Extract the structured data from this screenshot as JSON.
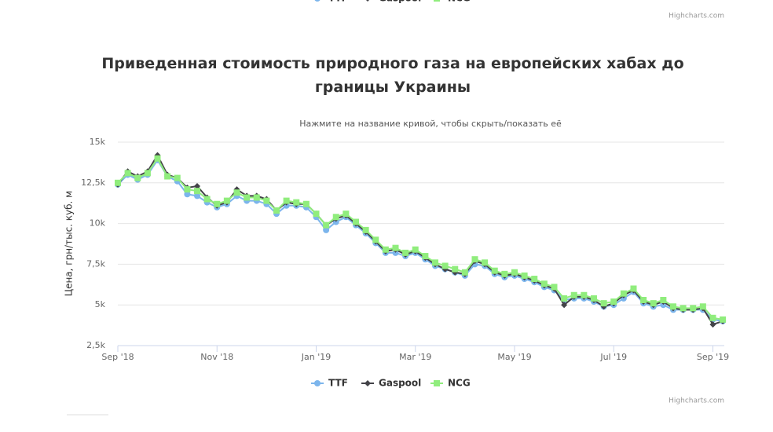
{
  "chart_data": {
    "type": "line",
    "title": "Приведенная стоимость природного газа на европейских хабах до границы Украины",
    "subtitle": "Нажмите на название кривой, чтобы скрыть/показать её",
    "y_label": "Цена, грн/тыс. куб. м",
    "credits": "Highcharts.com",
    "x": [
      0,
      0.2,
      0.4,
      0.6,
      0.8,
      1,
      1.2,
      1.4,
      1.6,
      1.8,
      2,
      2.2,
      2.4,
      2.6,
      2.8,
      3,
      3.2,
      3.4,
      3.6,
      3.8,
      4,
      4.2,
      4.4,
      4.6,
      4.8,
      5,
      5.2,
      5.4,
      5.6,
      5.8,
      6,
      6.2,
      6.4,
      6.6,
      6.8,
      7,
      7.2,
      7.4,
      7.6,
      7.8,
      8,
      8.2,
      8.4,
      8.6,
      8.8,
      9,
      9.2,
      9.4,
      9.6,
      9.8,
      10,
      10.2,
      10.4,
      10.6,
      10.8,
      11,
      11.2,
      11.4,
      11.6,
      11.8,
      12,
      12.2
    ],
    "xlim": [
      0,
      12.23
    ],
    "xticks": [
      {
        "value": 0,
        "label": "Sep '18"
      },
      {
        "value": 2,
        "label": "Nov '18"
      },
      {
        "value": 4,
        "label": "Jan '19"
      },
      {
        "value": 6,
        "label": "Mar '19"
      },
      {
        "value": 8,
        "label": "May '19"
      },
      {
        "value": 10,
        "label": "Jul '19"
      },
      {
        "value": 12,
        "label": "Sep '19"
      }
    ],
    "ylim": [
      2500,
      15000
    ],
    "yticks": [
      {
        "value": 2500,
        "label": "2,5k"
      },
      {
        "value": 5000,
        "label": "5k"
      },
      {
        "value": 7500,
        "label": "7,5k"
      },
      {
        "value": 10000,
        "label": "10k"
      },
      {
        "value": 12500,
        "label": "12,5k"
      },
      {
        "value": 15000,
        "label": "15k"
      }
    ],
    "grid": true,
    "legend": "bottom",
    "series": [
      {
        "name": "TTF",
        "color": "#7cb5ec",
        "marker": "circle",
        "values": [
          12400,
          13000,
          12700,
          13000,
          13900,
          12900,
          12600,
          11800,
          11700,
          11300,
          11000,
          11200,
          11700,
          11400,
          11400,
          11200,
          10600,
          11100,
          11100,
          11000,
          10400,
          9600,
          10100,
          10400,
          9900,
          9400,
          8800,
          8200,
          8200,
          8000,
          8200,
          7800,
          7400,
          7200,
          7000,
          6800,
          7500,
          7400,
          6900,
          6700,
          6800,
          6600,
          6400,
          6100,
          5900,
          5300,
          5400,
          5400,
          5200,
          4900,
          5000,
          5400,
          5800,
          5100,
          4900,
          5000,
          4700,
          4700,
          4700,
          4700,
          4100,
          4000
        ]
      },
      {
        "name": "Gaspool",
        "color": "#434348",
        "marker": "diamond",
        "values": [
          12400,
          13200,
          12900,
          13200,
          14200,
          13000,
          12800,
          12200,
          12300,
          11600,
          11100,
          11300,
          12100,
          11700,
          11700,
          11500,
          10800,
          11300,
          11200,
          11200,
          10600,
          9900,
          10300,
          10500,
          10000,
          9500,
          8900,
          8300,
          8400,
          8100,
          8300,
          7900,
          7500,
          7200,
          7000,
          6900,
          7700,
          7500,
          7000,
          6800,
          6900,
          6700,
          6500,
          6200,
          6000,
          5000,
          5500,
          5500,
          5300,
          4900,
          5100,
          5600,
          5900,
          5200,
          5000,
          5200,
          4800,
          4700,
          4700,
          4800,
          3800,
          4000
        ]
      },
      {
        "name": "NCG",
        "color": "#90ed7d",
        "marker": "square",
        "values": [
          12500,
          13100,
          12800,
          13100,
          14000,
          12900,
          12800,
          12100,
          12000,
          11500,
          11200,
          11400,
          11900,
          11600,
          11600,
          11400,
          10800,
          11400,
          11300,
          11200,
          10600,
          9900,
          10400,
          10600,
          10100,
          9600,
          9000,
          8400,
          8500,
          8200,
          8400,
          8000,
          7600,
          7400,
          7200,
          7000,
          7800,
          7600,
          7100,
          6900,
          7000,
          6800,
          6600,
          6300,
          6100,
          5400,
          5600,
          5600,
          5400,
          5100,
          5200,
          5700,
          6000,
          5300,
          5100,
          5300,
          4900,
          4800,
          4800,
          4900,
          4200,
          4100
        ]
      }
    ]
  }
}
